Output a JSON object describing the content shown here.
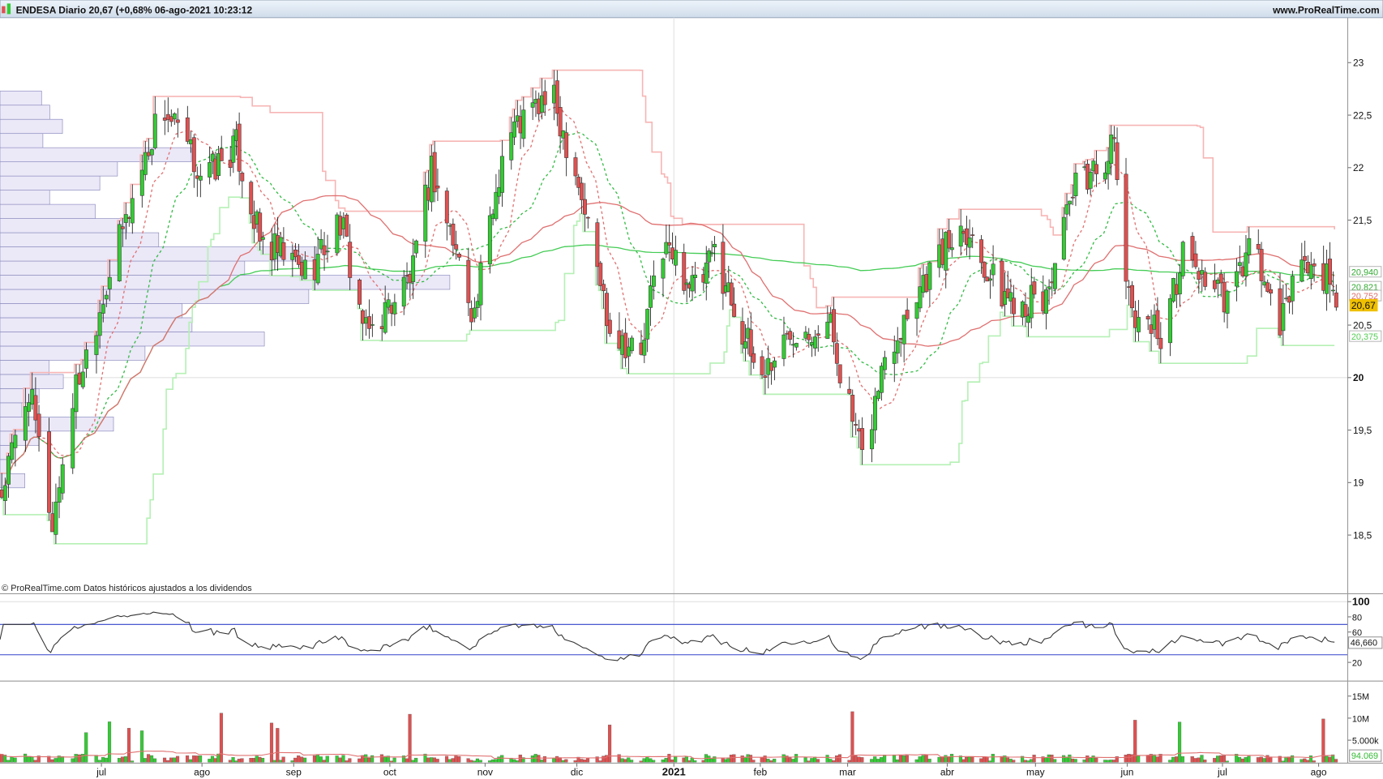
{
  "header": {
    "title": "ENDESA Diario 20,67 (+0,68% 06-ago-2021 10:23:12",
    "site": "www.ProRealTime.com"
  },
  "footer_note": "© ProRealTime.com  Datos históricos ajustados a los dividendos",
  "colors": {
    "up": "#33cc33",
    "down": "#e05050",
    "sma200": "#44cc55",
    "sma50": "#e07070",
    "sma20": "#33bb44",
    "channel_high": "#f7b5b5",
    "channel_low": "#b5f0b5",
    "profile": "#ebe8f8",
    "rsi_band": "#3344cc",
    "last_price_bg": "#f0c000"
  },
  "chart_data": [
    {
      "type": "candlestick",
      "x_ticks": [
        "jul",
        "ago",
        "sep",
        "oct",
        "nov",
        "dic",
        "2021",
        "feb",
        "mar",
        "abr",
        "may",
        "jun",
        "jul",
        "ago"
      ],
      "x_tick_dates": [
        "2020-07-01",
        "2020-08-01",
        "2020-09-01",
        "2020-10-01",
        "2020-11-01",
        "2020-12-01",
        "2021-01-01",
        "2021-02-01",
        "2021-03-01",
        "2021-04-01",
        "2021-05-01",
        "2021-06-01",
        "2021-07-01",
        "2021-08-01"
      ],
      "y_ticks": [
        "23",
        "22,5",
        "22",
        "21,5",
        "20,5",
        "20",
        "19,5",
        "19",
        "18,5"
      ],
      "y_tick_values": [
        23,
        22.5,
        22,
        21.5,
        20.5,
        20,
        19.5,
        19,
        18.5
      ],
      "ylim": [
        18.2,
        23.35
      ],
      "last_price": "20,67",
      "indicator_labels": [
        "20,940",
        "20,821",
        "20,752",
        "20,375"
      ],
      "approx_close_path": [
        [
          "2020-06-01",
          18.9
        ],
        [
          "2020-06-09",
          19.9
        ],
        [
          "2020-06-16",
          18.6
        ],
        [
          "2020-06-22",
          19.8
        ],
        [
          "2020-07-02",
          20.9
        ],
        [
          "2020-07-19",
          22.6
        ],
        [
          "2020-08-01",
          21.9
        ],
        [
          "2020-08-12",
          22.2
        ],
        [
          "2020-08-20",
          21.3
        ],
        [
          "2020-09-05",
          21.0
        ],
        [
          "2020-09-15",
          21.5
        ],
        [
          "2020-09-23",
          20.4
        ],
        [
          "2020-10-08",
          21.0
        ],
        [
          "2020-10-14",
          22.0
        ],
        [
          "2020-10-28",
          20.6
        ],
        [
          "2020-11-07",
          22.3
        ],
        [
          "2020-11-22",
          22.7
        ],
        [
          "2020-11-30",
          22.0
        ],
        [
          "2020-12-11",
          20.5
        ],
        [
          "2020-12-21",
          20.2
        ],
        [
          "2020-12-27",
          21.3
        ],
        [
          "2021-01-09",
          20.8
        ],
        [
          "2021-01-15",
          21.2
        ],
        [
          "2021-01-31",
          20.0
        ],
        [
          "2021-02-12",
          20.5
        ],
        [
          "2021-02-23",
          20.5
        ],
        [
          "2021-03-05",
          19.2
        ],
        [
          "2021-03-12",
          20.2
        ],
        [
          "2021-03-23",
          20.9
        ],
        [
          "2021-04-06",
          21.5
        ],
        [
          "2021-04-18",
          20.8
        ],
        [
          "2021-05-03",
          20.7
        ],
        [
          "2021-05-14",
          21.8
        ],
        [
          "2021-05-27",
          22.2
        ],
        [
          "2021-06-01",
          20.7
        ],
        [
          "2021-06-12",
          20.4
        ],
        [
          "2021-06-18",
          21.2
        ],
        [
          "2021-07-02",
          20.7
        ],
        [
          "2021-07-10",
          21.3
        ],
        [
          "2021-07-19",
          20.4
        ],
        [
          "2021-07-24",
          21.1
        ],
        [
          "2021-08-02",
          21.0
        ],
        [
          "2021-08-06",
          20.67
        ]
      ]
    },
    {
      "type": "line",
      "y_ticks": [
        "100",
        "80",
        "60",
        "20"
      ],
      "y_tick_values": [
        100,
        80,
        60,
        20
      ],
      "bands": [
        70,
        30
      ],
      "last_value": "46,660"
    },
    {
      "type": "bar",
      "y_ticks": [
        "15M",
        "10M",
        "5.000k"
      ],
      "y_tick_values": [
        15,
        10,
        5
      ],
      "unit": "M",
      "last_value": "94.069"
    }
  ]
}
